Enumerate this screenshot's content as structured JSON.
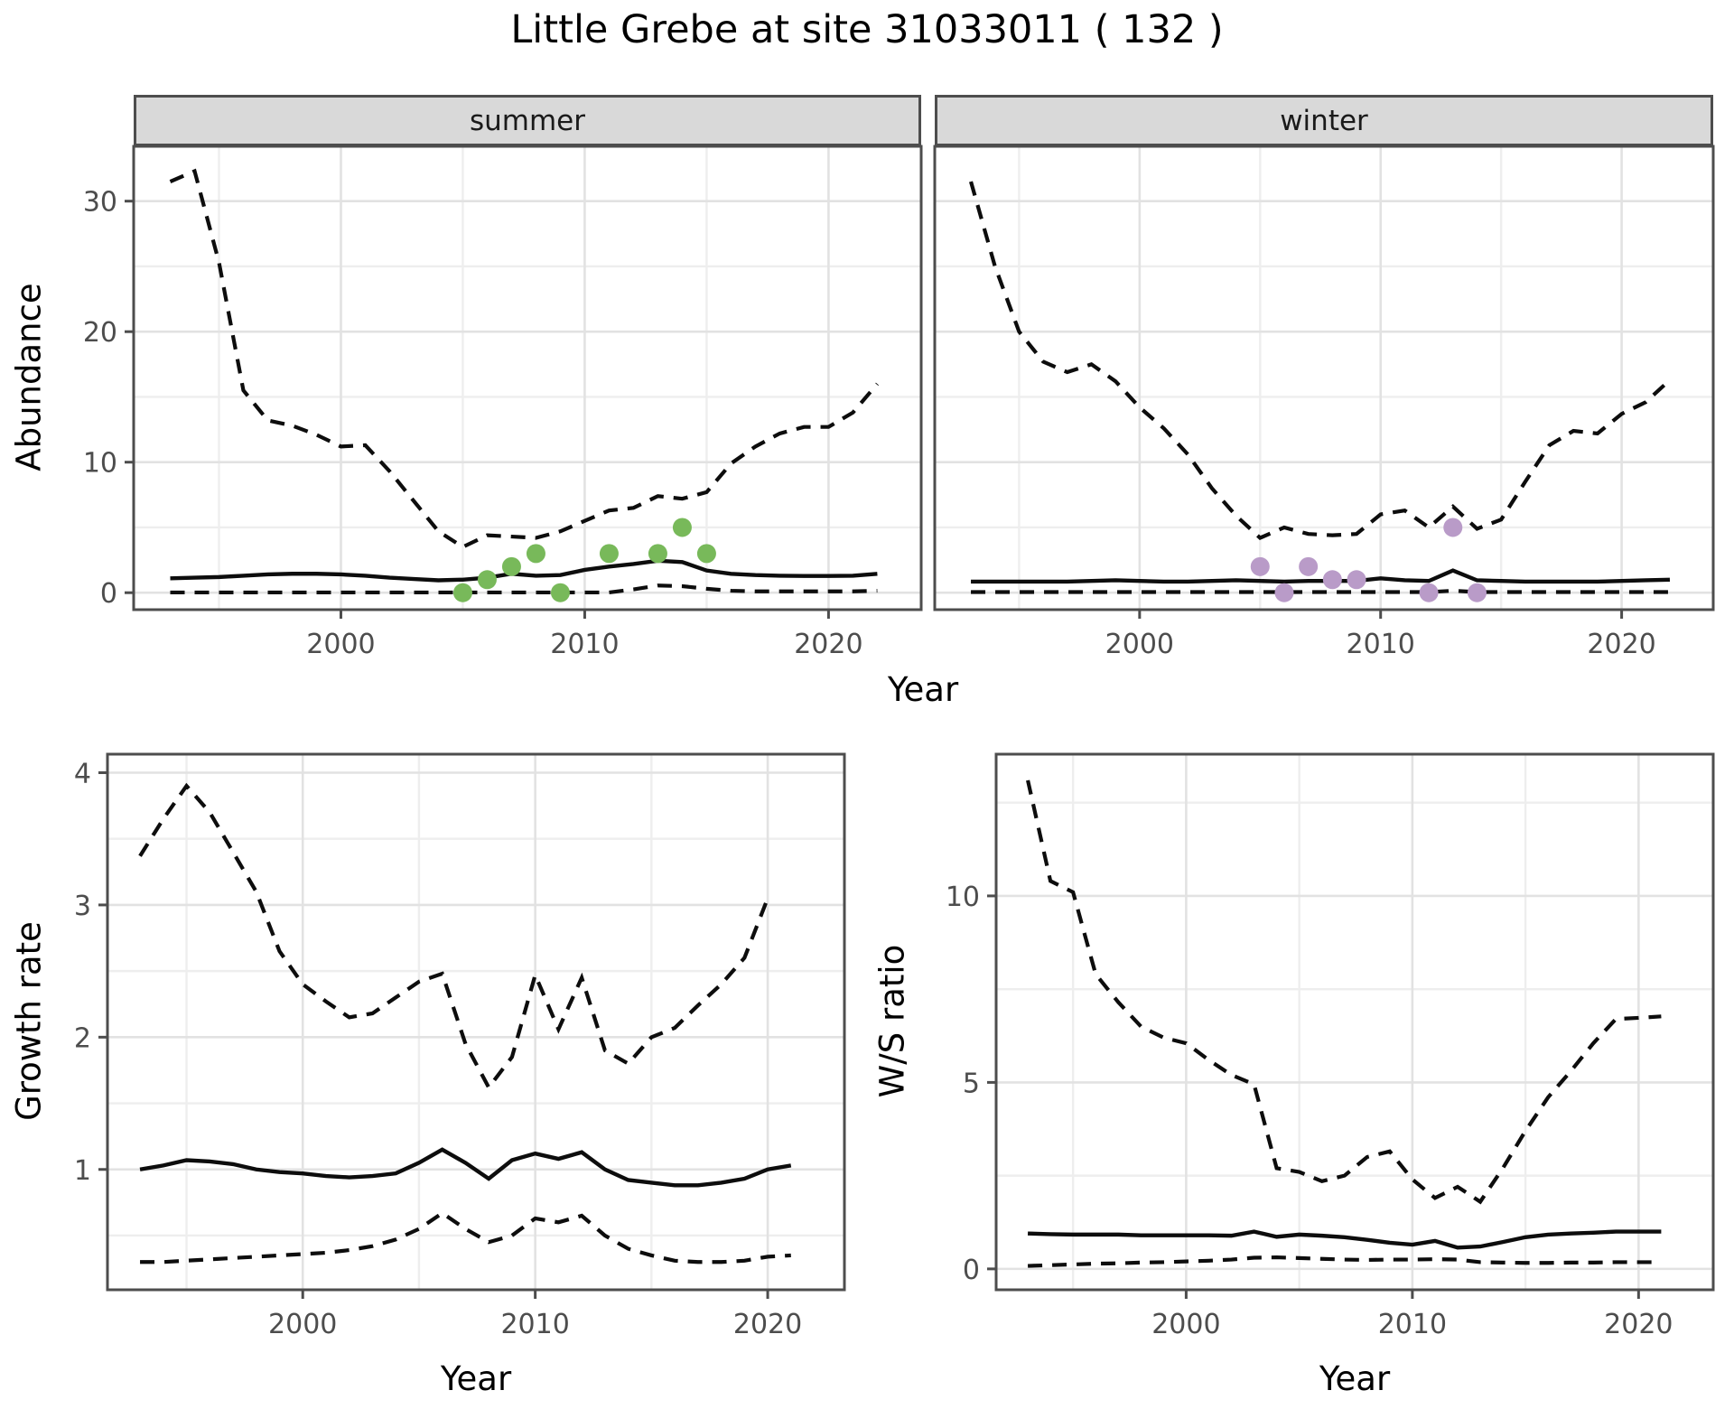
{
  "title": "Little Grebe at site 31033011 ( 132 )",
  "facets": {
    "summer_label": "summer",
    "winter_label": "winter"
  },
  "axis_titles": {
    "abundance": "Abundance",
    "year_top": "Year",
    "growth": "Growth rate",
    "ws": "W/S ratio",
    "year_bottom_left": "Year",
    "year_bottom_right": "Year"
  },
  "colors": {
    "summer_point": "#78B95A",
    "winter_point": "#B99BC8",
    "line": "#0d0d0d",
    "grid_major": "#e2e2e2",
    "grid_minor": "#eeeeee",
    "strip_bg": "#d9d9d9",
    "panel_border": "#4d4d4d",
    "tick_text": "#4d4d4d"
  },
  "chart_data": [
    {
      "id": "abundance-summer",
      "type": "line",
      "facet": "summer",
      "xlabel": "Year",
      "ylabel": "Abundance",
      "xlim": [
        1991.5,
        2023.8
      ],
      "ylim": [
        -1.3,
        34.2
      ],
      "x_major": [
        2000,
        2010,
        2020
      ],
      "x_minor": [
        1995,
        2005,
        2015
      ],
      "y_major": [
        0,
        10,
        20,
        30
      ],
      "y_minor": [
        5,
        15,
        25
      ],
      "grid": true,
      "legend": "none",
      "series": [
        {
          "name": "upper_ci",
          "style": "dashed",
          "x": [
            1993,
            1994,
            1995,
            1996,
            1997,
            1998,
            1999,
            2000,
            2001,
            2002,
            2003,
            2004,
            2005,
            2006,
            2007,
            2008,
            2009,
            2010,
            2011,
            2012,
            2013,
            2014,
            2015,
            2016,
            2017,
            2018,
            2019,
            2020,
            2021,
            2022
          ],
          "y": [
            31.5,
            32.3,
            25.3,
            15.5,
            13.2,
            12.8,
            12.1,
            11.2,
            11.3,
            9.3,
            7.0,
            4.7,
            3.5,
            4.4,
            4.3,
            4.2,
            4.7,
            5.5,
            6.3,
            6.5,
            7.4,
            7.2,
            7.7,
            9.9,
            11.2,
            12.2,
            12.7,
            12.7,
            13.8,
            16.0
          ]
        },
        {
          "name": "median",
          "style": "solid",
          "x": [
            1993,
            1994,
            1995,
            1996,
            1997,
            1998,
            1999,
            2000,
            2001,
            2002,
            2003,
            2004,
            2005,
            2006,
            2007,
            2008,
            2009,
            2010,
            2011,
            2012,
            2013,
            2014,
            2015,
            2016,
            2017,
            2018,
            2019,
            2020,
            2021,
            2022
          ],
          "y": [
            1.1,
            1.15,
            1.2,
            1.3,
            1.4,
            1.45,
            1.45,
            1.4,
            1.3,
            1.15,
            1.05,
            0.95,
            1.0,
            1.15,
            1.45,
            1.3,
            1.35,
            1.75,
            2.0,
            2.2,
            2.45,
            2.35,
            1.7,
            1.45,
            1.35,
            1.3,
            1.28,
            1.28,
            1.3,
            1.45
          ]
        },
        {
          "name": "lower_ci",
          "style": "dashed",
          "x": [
            1993,
            1994,
            1995,
            1996,
            1997,
            1998,
            1999,
            2000,
            2001,
            2002,
            2003,
            2004,
            2005,
            2006,
            2007,
            2008,
            2009,
            2010,
            2011,
            2012,
            2013,
            2014,
            2015,
            2016,
            2017,
            2018,
            2019,
            2020,
            2021,
            2022
          ],
          "y": [
            0.02,
            0.02,
            0.02,
            0.02,
            0.02,
            0.02,
            0.02,
            0.02,
            0.02,
            0.02,
            0.02,
            0.02,
            0.02,
            0.02,
            0.02,
            0.02,
            0.02,
            0.02,
            0.02,
            0.25,
            0.55,
            0.5,
            0.3,
            0.15,
            0.1,
            0.1,
            0.1,
            0.1,
            0.1,
            0.15
          ]
        }
      ],
      "points": {
        "name": "observed_summer",
        "color": "#78B95A",
        "x": [
          2005,
          2006,
          2007,
          2008,
          2009,
          2011,
          2013,
          2014,
          2015
        ],
        "y": [
          0,
          1,
          2,
          3,
          0,
          3,
          3,
          5,
          3
        ]
      }
    },
    {
      "id": "abundance-winter",
      "type": "line",
      "facet": "winter",
      "xlabel": "Year",
      "ylabel": "Abundance",
      "xlim": [
        1991.5,
        2023.8
      ],
      "ylim": [
        -1.3,
        34.2
      ],
      "x_major": [
        2000,
        2010,
        2020
      ],
      "x_minor": [
        1995,
        2005,
        2015
      ],
      "y_major": [
        0,
        10,
        20,
        30
      ],
      "y_minor": [
        5,
        15,
        25
      ],
      "grid": true,
      "legend": "none",
      "series": [
        {
          "name": "upper_ci",
          "style": "dashed",
          "x": [
            1993,
            1994,
            1995,
            1996,
            1997,
            1998,
            1999,
            2000,
            2001,
            2002,
            2003,
            2004,
            2005,
            2006,
            2007,
            2008,
            2009,
            2010,
            2011,
            2012,
            2013,
            2014,
            2015,
            2016,
            2017,
            2018,
            2019,
            2020,
            2021,
            2022
          ],
          "y": [
            31.5,
            25.0,
            20.0,
            17.7,
            16.9,
            17.5,
            16.2,
            14.2,
            12.6,
            10.6,
            8.0,
            5.9,
            4.2,
            5.0,
            4.5,
            4.4,
            4.5,
            6.0,
            6.3,
            5.0,
            6.6,
            4.9,
            5.6,
            8.5,
            11.3,
            12.4,
            12.2,
            13.7,
            14.6,
            16.3
          ]
        },
        {
          "name": "median",
          "style": "solid",
          "x": [
            1993,
            1994,
            1995,
            1996,
            1997,
            1998,
            1999,
            2000,
            2001,
            2002,
            2003,
            2004,
            2005,
            2006,
            2007,
            2008,
            2009,
            2010,
            2011,
            2012,
            2013,
            2014,
            2015,
            2016,
            2017,
            2018,
            2019,
            2020,
            2021,
            2022
          ],
          "y": [
            0.85,
            0.85,
            0.85,
            0.85,
            0.85,
            0.9,
            0.95,
            0.9,
            0.85,
            0.85,
            0.9,
            0.95,
            0.9,
            0.85,
            0.9,
            0.9,
            0.9,
            1.1,
            0.95,
            0.9,
            1.7,
            0.95,
            0.9,
            0.85,
            0.85,
            0.85,
            0.85,
            0.9,
            0.95,
            1.0
          ]
        },
        {
          "name": "lower_ci",
          "style": "dashed",
          "x": [
            1993,
            1994,
            1995,
            1996,
            1997,
            1998,
            1999,
            2000,
            2001,
            2002,
            2003,
            2004,
            2005,
            2006,
            2007,
            2008,
            2009,
            2010,
            2011,
            2012,
            2013,
            2014,
            2015,
            2016,
            2017,
            2018,
            2019,
            2020,
            2021,
            2022
          ],
          "y": [
            0.05,
            0.05,
            0.05,
            0.05,
            0.05,
            0.05,
            0.05,
            0.05,
            0.05,
            0.05,
            0.05,
            0.05,
            0.05,
            0.05,
            0.05,
            0.05,
            0.05,
            0.05,
            0.05,
            0.05,
            0.15,
            0.05,
            0.05,
            0.05,
            0.05,
            0.05,
            0.05,
            0.05,
            0.05,
            0.05
          ]
        }
      ],
      "points": {
        "name": "observed_winter",
        "color": "#B99BC8",
        "x": [
          2005,
          2006,
          2007,
          2008,
          2009,
          2012,
          2013,
          2014
        ],
        "y": [
          2,
          0,
          2,
          1,
          1,
          0,
          5,
          0
        ]
      }
    },
    {
      "id": "growth-rate",
      "type": "line",
      "facet": "",
      "xlabel": "Year",
      "ylabel": "Growth rate",
      "xlim": [
        1991.6,
        2023.3
      ],
      "ylim": [
        0.09,
        4.14
      ],
      "x_major": [
        2000,
        2010,
        2020
      ],
      "x_minor": [
        1995,
        2005,
        2015
      ],
      "y_major": [
        1,
        2,
        3,
        4
      ],
      "y_minor": [
        0.5,
        1.5,
        2.5,
        3.5
      ],
      "grid": true,
      "legend": "none",
      "series": [
        {
          "name": "upper_ci",
          "style": "dashed",
          "x": [
            1993,
            1994,
            1995,
            1996,
            1997,
            1998,
            1999,
            2000,
            2001,
            2002,
            2003,
            2004,
            2005,
            2006,
            2007,
            2008,
            2009,
            2010,
            2011,
            2012,
            2013,
            2014,
            2015,
            2016,
            2017,
            2018,
            2019,
            2020
          ],
          "y": [
            3.37,
            3.65,
            3.9,
            3.7,
            3.4,
            3.1,
            2.65,
            2.4,
            2.27,
            2.15,
            2.18,
            2.3,
            2.42,
            2.48,
            1.95,
            1.62,
            1.85,
            2.47,
            2.06,
            2.45,
            1.9,
            1.8,
            2.0,
            2.07,
            2.24,
            2.4,
            2.6,
            3.05
          ]
        },
        {
          "name": "median",
          "style": "solid",
          "x": [
            1993,
            1994,
            1995,
            1996,
            1997,
            1998,
            1999,
            2000,
            2001,
            2002,
            2003,
            2004,
            2005,
            2006,
            2007,
            2008,
            2009,
            2010,
            2011,
            2012,
            2013,
            2014,
            2015,
            2016,
            2017,
            2018,
            2019,
            2020,
            2021
          ],
          "y": [
            1.0,
            1.03,
            1.07,
            1.06,
            1.04,
            1.0,
            0.98,
            0.97,
            0.95,
            0.94,
            0.95,
            0.97,
            1.05,
            1.15,
            1.05,
            0.93,
            1.07,
            1.12,
            1.08,
            1.13,
            1.0,
            0.92,
            0.9,
            0.88,
            0.88,
            0.9,
            0.93,
            1.0,
            1.03
          ]
        },
        {
          "name": "lower_ci",
          "style": "dashed",
          "x": [
            1993,
            1994,
            1995,
            1996,
            1997,
            1998,
            1999,
            2000,
            2001,
            2002,
            2003,
            2004,
            2005,
            2006,
            2007,
            2008,
            2009,
            2010,
            2011,
            2012,
            2013,
            2014,
            2015,
            2016,
            2017,
            2018,
            2019,
            2020,
            2021
          ],
          "y": [
            0.3,
            0.3,
            0.31,
            0.32,
            0.33,
            0.34,
            0.35,
            0.36,
            0.37,
            0.39,
            0.42,
            0.47,
            0.55,
            0.67,
            0.55,
            0.45,
            0.5,
            0.63,
            0.6,
            0.65,
            0.5,
            0.4,
            0.35,
            0.31,
            0.3,
            0.3,
            0.31,
            0.34,
            0.35
          ]
        }
      ],
      "points": null
    },
    {
      "id": "ws-ratio",
      "type": "line",
      "facet": "",
      "xlabel": "Year",
      "ylabel": "W/S ratio",
      "xlim": [
        1991.6,
        2023.3
      ],
      "ylim": [
        -0.56,
        13.8
      ],
      "x_major": [
        2000,
        2010,
        2020
      ],
      "x_minor": [
        1995,
        2005,
        2015
      ],
      "y_major": [
        0,
        5,
        10
      ],
      "y_minor": [
        2.5,
        7.5,
        12.5
      ],
      "grid": true,
      "legend": "none",
      "series": [
        {
          "name": "upper_ci",
          "style": "dashed",
          "x": [
            1993,
            1994,
            1995,
            1996,
            1997,
            1998,
            1999,
            2000,
            2001,
            2002,
            2003,
            2004,
            2005,
            2006,
            2007,
            2008,
            2009,
            2010,
            2011,
            2012,
            2013,
            2014,
            2015,
            2016,
            2017,
            2018,
            2019,
            2020,
            2021
          ],
          "y": [
            13.1,
            10.4,
            10.1,
            7.9,
            7.15,
            6.5,
            6.2,
            6.05,
            5.6,
            5.2,
            4.95,
            2.7,
            2.6,
            2.35,
            2.5,
            3.0,
            3.15,
            2.4,
            1.9,
            2.2,
            1.8,
            2.7,
            3.7,
            4.6,
            5.3,
            6.05,
            6.7,
            6.73,
            6.77
          ]
        },
        {
          "name": "median",
          "style": "solid",
          "x": [
            1993,
            1994,
            1995,
            1996,
            1997,
            1998,
            1999,
            2000,
            2001,
            2002,
            2003,
            2004,
            2005,
            2006,
            2007,
            2008,
            2009,
            2010,
            2011,
            2012,
            2013,
            2014,
            2015,
            2016,
            2017,
            2018,
            2019,
            2020,
            2021
          ],
          "y": [
            0.95,
            0.93,
            0.92,
            0.92,
            0.92,
            0.9,
            0.9,
            0.9,
            0.9,
            0.89,
            1.0,
            0.86,
            0.92,
            0.89,
            0.85,
            0.78,
            0.7,
            0.65,
            0.75,
            0.57,
            0.6,
            0.72,
            0.85,
            0.92,
            0.95,
            0.97,
            1.0,
            1.0,
            1.0
          ]
        },
        {
          "name": "lower_ci",
          "style": "dashed",
          "x": [
            1993,
            1994,
            1995,
            1996,
            1997,
            1998,
            1999,
            2000,
            2001,
            2002,
            2003,
            2004,
            2005,
            2006,
            2007,
            2008,
            2009,
            2010,
            2011,
            2012,
            2013,
            2014,
            2015,
            2016,
            2017,
            2018,
            2019,
            2020,
            2021
          ],
          "y": [
            0.08,
            0.1,
            0.12,
            0.14,
            0.15,
            0.17,
            0.18,
            0.2,
            0.22,
            0.25,
            0.3,
            0.31,
            0.29,
            0.27,
            0.25,
            0.24,
            0.25,
            0.25,
            0.26,
            0.25,
            0.18,
            0.17,
            0.16,
            0.16,
            0.17,
            0.17,
            0.18,
            0.18,
            0.18
          ]
        }
      ],
      "points": null
    }
  ]
}
